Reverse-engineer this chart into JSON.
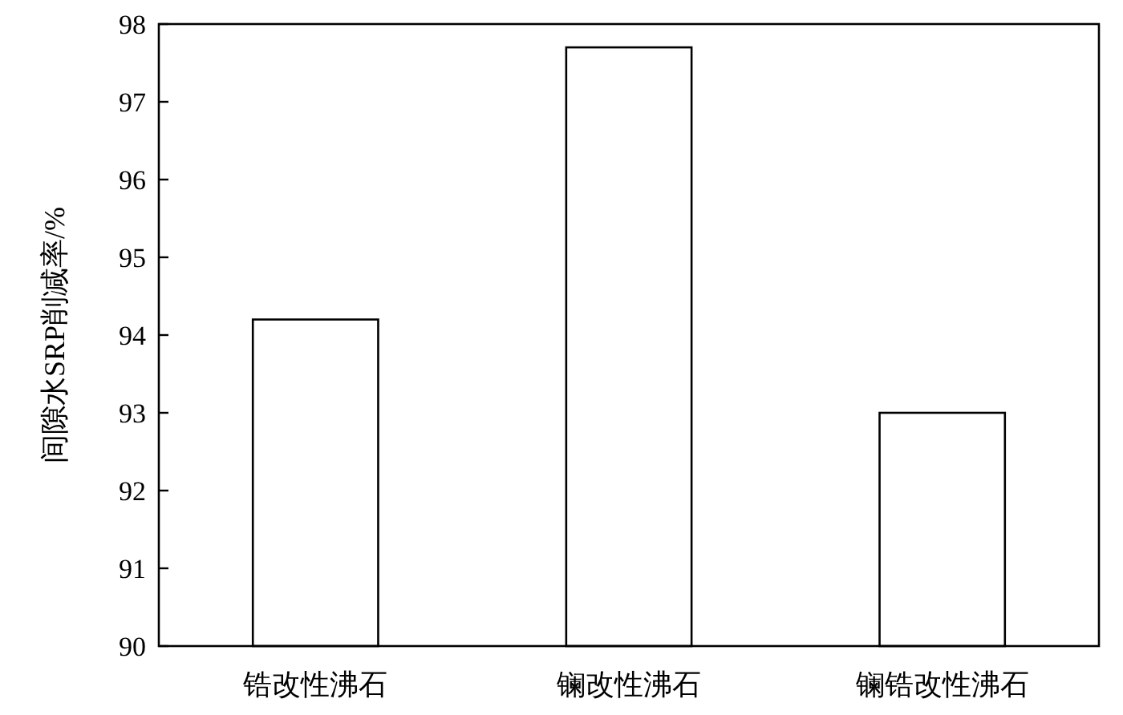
{
  "chart_data": {
    "type": "bar",
    "ylabel": "间隙水SRP削减率/%",
    "categories": [
      "锆改性沸石",
      "镧改性沸石",
      "镧锆改性沸石"
    ],
    "values": [
      94.2,
      97.7,
      93.0
    ],
    "color": "#ffffff",
    "ylim": [
      90,
      98
    ],
    "yticks": [
      90,
      91,
      92,
      93,
      94,
      95,
      96,
      97,
      98
    ],
    "grid": false
  }
}
